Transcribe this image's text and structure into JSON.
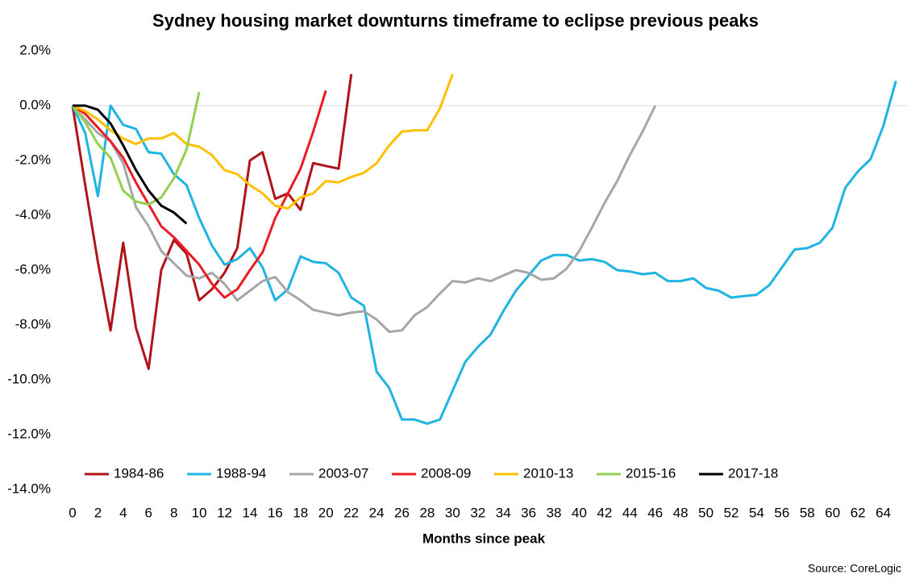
{
  "chart_data": {
    "type": "line",
    "title": "Sydney housing market downturns timeframe to eclipse previous peaks",
    "x_label": "Months since peak",
    "source": "Source: CoreLogic",
    "x": [
      0,
      1,
      2,
      3,
      4,
      5,
      6,
      7,
      8,
      9,
      10,
      11,
      12,
      13,
      14,
      15,
      16,
      17,
      18,
      19,
      20,
      21,
      22,
      23,
      24,
      25,
      26,
      27,
      28,
      29,
      30,
      31,
      32,
      33,
      34,
      35,
      36,
      37,
      38,
      39,
      40,
      41,
      42,
      43,
      44,
      45,
      46,
      47,
      48,
      49,
      50,
      51,
      52,
      53,
      54,
      55,
      56,
      57,
      58,
      59,
      60,
      61,
      62,
      63,
      64,
      65
    ],
    "xlim": [
      0,
      66
    ],
    "xticks": [
      0,
      2,
      4,
      6,
      8,
      10,
      12,
      14,
      16,
      18,
      20,
      22,
      24,
      26,
      28,
      30,
      32,
      34,
      36,
      38,
      40,
      42,
      44,
      46,
      48,
      50,
      52,
      54,
      56,
      58,
      60,
      62,
      64
    ],
    "ylim": [
      -14,
      2
    ],
    "yticks": [
      {
        "value": 2,
        "label": "2.0%"
      },
      {
        "value": 0,
        "label": "0.0%"
      },
      {
        "value": -2,
        "label": "-2.0%"
      },
      {
        "value": -4,
        "label": "-4.0%"
      },
      {
        "value": -6,
        "label": "-6.0%"
      },
      {
        "value": -8,
        "label": "-8.0%"
      },
      {
        "value": -10,
        "label": "-10.0%"
      },
      {
        "value": -12,
        "label": "-12.0%"
      },
      {
        "value": -14,
        "label": "-14.0%"
      }
    ],
    "series": [
      {
        "name": "1984-86",
        "color": "#b01419",
        "values": [
          0,
          -2.9,
          -5.7,
          -8.2,
          -5.0,
          -8.1,
          -9.6,
          -6.0,
          -4.9,
          -5.4,
          -7.1,
          -6.7,
          -6.1,
          -5.2,
          -2.0,
          -1.7,
          -3.4,
          -3.2,
          -3.8,
          -2.1,
          -2.2,
          -2.3,
          1.15,
          null,
          null,
          null,
          null,
          null,
          null,
          null,
          null,
          null,
          null,
          null,
          null,
          null,
          null,
          null,
          null,
          null,
          null,
          null,
          null,
          null,
          null,
          null,
          null,
          null,
          null,
          null,
          null,
          null,
          null,
          null,
          null,
          null,
          null,
          null,
          null,
          null,
          null,
          null,
          null,
          null,
          null,
          null
        ]
      },
      {
        "name": "1988-94",
        "color": "#1fb4e2",
        "values": [
          0,
          -1.0,
          -3.3,
          0,
          -0.7,
          -0.85,
          -1.7,
          -1.75,
          -2.5,
          -2.9,
          -4.1,
          -5.1,
          -5.8,
          -5.6,
          -5.2,
          -5.9,
          -7.1,
          -6.7,
          -5.5,
          -5.7,
          -5.75,
          -6.1,
          -7.0,
          -7.3,
          -9.7,
          -10.3,
          -11.45,
          -11.45,
          -11.6,
          -11.45,
          -10.4,
          -9.35,
          -8.8,
          -8.35,
          -7.5,
          -6.75,
          -6.2,
          -5.65,
          -5.45,
          -5.45,
          -5.65,
          -5.6,
          -5.7,
          -6.0,
          -6.05,
          -6.15,
          -6.1,
          -6.4,
          -6.4,
          -6.3,
          -6.65,
          -6.75,
          -7.0,
          -6.95,
          -6.9,
          -6.55,
          -5.9,
          -5.25,
          -5.2,
          -5.0,
          -4.45,
          -3.0,
          -2.4,
          -1.95,
          -0.75,
          0.9
        ]
      },
      {
        "name": "2003-07",
        "color": "#a6a6a6",
        "values": [
          0,
          -0.5,
          -1.0,
          -1.3,
          -2.1,
          -3.7,
          -4.4,
          -5.3,
          -5.75,
          -6.2,
          -6.3,
          -6.1,
          -6.5,
          -7.1,
          -6.75,
          -6.4,
          -6.25,
          -6.8,
          -7.1,
          -7.45,
          -7.55,
          -7.65,
          -7.55,
          -7.5,
          -7.8,
          -8.25,
          -8.2,
          -7.65,
          -7.35,
          -6.85,
          -6.4,
          -6.45,
          -6.3,
          -6.4,
          -6.2,
          -6.0,
          -6.1,
          -6.35,
          -6.3,
          -5.95,
          -5.3,
          -4.45,
          -3.55,
          -2.75,
          -1.8,
          -0.95,
          0,
          null,
          null,
          null,
          null,
          null,
          null,
          null,
          null,
          null,
          null,
          null,
          null,
          null,
          null,
          null,
          null,
          null,
          null,
          null
        ]
      },
      {
        "name": "2008-09",
        "color": "#ec1c24",
        "values": [
          0,
          -0.3,
          -0.8,
          -1.3,
          -1.9,
          -2.8,
          -3.6,
          -4.4,
          -4.8,
          -5.3,
          -5.8,
          -6.5,
          -7.0,
          -6.7,
          -6.0,
          -5.35,
          -4.1,
          -3.2,
          -2.3,
          -0.95,
          0.55,
          null,
          null,
          null,
          null,
          null,
          null,
          null,
          null,
          null,
          null,
          null,
          null,
          null,
          null,
          null,
          null,
          null,
          null,
          null,
          null,
          null,
          null,
          null,
          null,
          null,
          null,
          null,
          null,
          null,
          null,
          null,
          null,
          null,
          null,
          null,
          null,
          null,
          null,
          null,
          null,
          null,
          null,
          null,
          null,
          null
        ]
      },
      {
        "name": "2010-13",
        "color": "#ffc000",
        "values": [
          0,
          -0.2,
          -0.5,
          -0.9,
          -1.2,
          -1.4,
          -1.2,
          -1.2,
          -1.0,
          -1.4,
          -1.5,
          -1.8,
          -2.35,
          -2.5,
          -2.9,
          -3.2,
          -3.65,
          -3.75,
          -3.35,
          -3.2,
          -2.75,
          -2.8,
          -2.6,
          -2.45,
          -2.1,
          -1.45,
          -0.95,
          -0.9,
          -0.9,
          -0.1,
          1.15,
          null,
          null,
          null,
          null,
          null,
          null,
          null,
          null,
          null,
          null,
          null,
          null,
          null,
          null,
          null,
          null,
          null,
          null,
          null,
          null,
          null,
          null,
          null,
          null,
          null,
          null,
          null,
          null,
          null,
          null,
          null,
          null,
          null,
          null,
          null
        ]
      },
      {
        "name": "2015-16",
        "color": "#92d050",
        "values": [
          0,
          -0.6,
          -1.4,
          -1.9,
          -3.1,
          -3.5,
          -3.6,
          -3.35,
          -2.65,
          -1.6,
          0.5,
          null,
          null,
          null,
          null,
          null,
          null,
          null,
          null,
          null,
          null,
          null,
          null,
          null,
          null,
          null,
          null,
          null,
          null,
          null,
          null,
          null,
          null,
          null,
          null,
          null,
          null,
          null,
          null,
          null,
          null,
          null,
          null,
          null,
          null,
          null,
          null,
          null,
          null,
          null,
          null,
          null,
          null,
          null,
          null,
          null,
          null,
          null,
          null,
          null,
          null,
          null,
          null,
          null,
          null,
          null
        ]
      },
      {
        "name": "2017-18",
        "color": "#000000",
        "values": [
          0,
          0,
          -0.15,
          -0.65,
          -1.45,
          -2.35,
          -3.1,
          -3.65,
          -3.9,
          -4.3,
          null,
          null,
          null,
          null,
          null,
          null,
          null,
          null,
          null,
          null,
          null,
          null,
          null,
          null,
          null,
          null,
          null,
          null,
          null,
          null,
          null,
          null,
          null,
          null,
          null,
          null,
          null,
          null,
          null,
          null,
          null,
          null,
          null,
          null,
          null,
          null,
          null,
          null,
          null,
          null,
          null,
          null,
          null,
          null,
          null,
          null,
          null,
          null,
          null,
          null,
          null,
          null,
          null,
          null,
          null,
          null
        ]
      }
    ]
  }
}
